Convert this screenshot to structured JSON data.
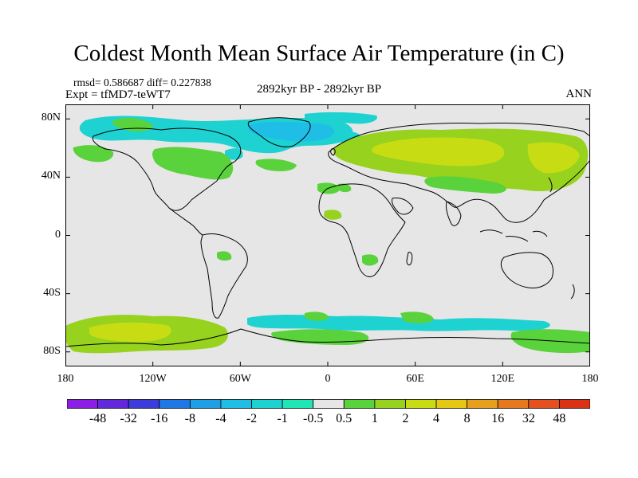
{
  "title": "Coldest Month Mean Surface Air Temperature (in C)",
  "stats": {
    "text": "rmsd= 0.586687  diff= 0.227838"
  },
  "experiment": {
    "text": "Expt = tfMD7-teWT7"
  },
  "period": {
    "text": "2892kyr BP - 2892kyr BP"
  },
  "season": {
    "text": "ANN"
  },
  "map": {
    "projection": "cylindrical-equidistant",
    "lon_range": [
      -180,
      180
    ],
    "lat_range": [
      -90,
      90
    ],
    "background_color": "#e6e6e6",
    "coastline_color": "#000000",
    "lat_ticks": [
      {
        "value": 80,
        "label": "80N"
      },
      {
        "value": 40,
        "label": "40N"
      },
      {
        "value": 0,
        "label": "0"
      },
      {
        "value": -40,
        "label": "40S"
      },
      {
        "value": -80,
        "label": "80S"
      }
    ],
    "lon_ticks": [
      {
        "value": -180,
        "label": "180"
      },
      {
        "value": -120,
        "label": "120W"
      },
      {
        "value": -60,
        "label": "60W"
      },
      {
        "value": 0,
        "label": "0"
      },
      {
        "value": 60,
        "label": "60E"
      },
      {
        "value": 120,
        "label": "120E"
      },
      {
        "value": 180,
        "label": "180"
      }
    ]
  },
  "colorbar": {
    "colors": [
      "#8c1ee6",
      "#6428dc",
      "#3c3cdc",
      "#1e78e6",
      "#1ea0e6",
      "#1ebee6",
      "#1ed2d2",
      "#1ee6b4",
      "#e6e6e6",
      "#5ad23c",
      "#96d21e",
      "#c8dc14",
      "#e6c814",
      "#e6a01e",
      "#e6781e",
      "#e6501e",
      "#dc3214"
    ],
    "labels": [
      "-48",
      "-32",
      "-16",
      "-8",
      "-4",
      "-2",
      "-1",
      "-0.5",
      "0.5",
      "1",
      "2",
      "4",
      "8",
      "16",
      "32",
      "48"
    ]
  }
}
